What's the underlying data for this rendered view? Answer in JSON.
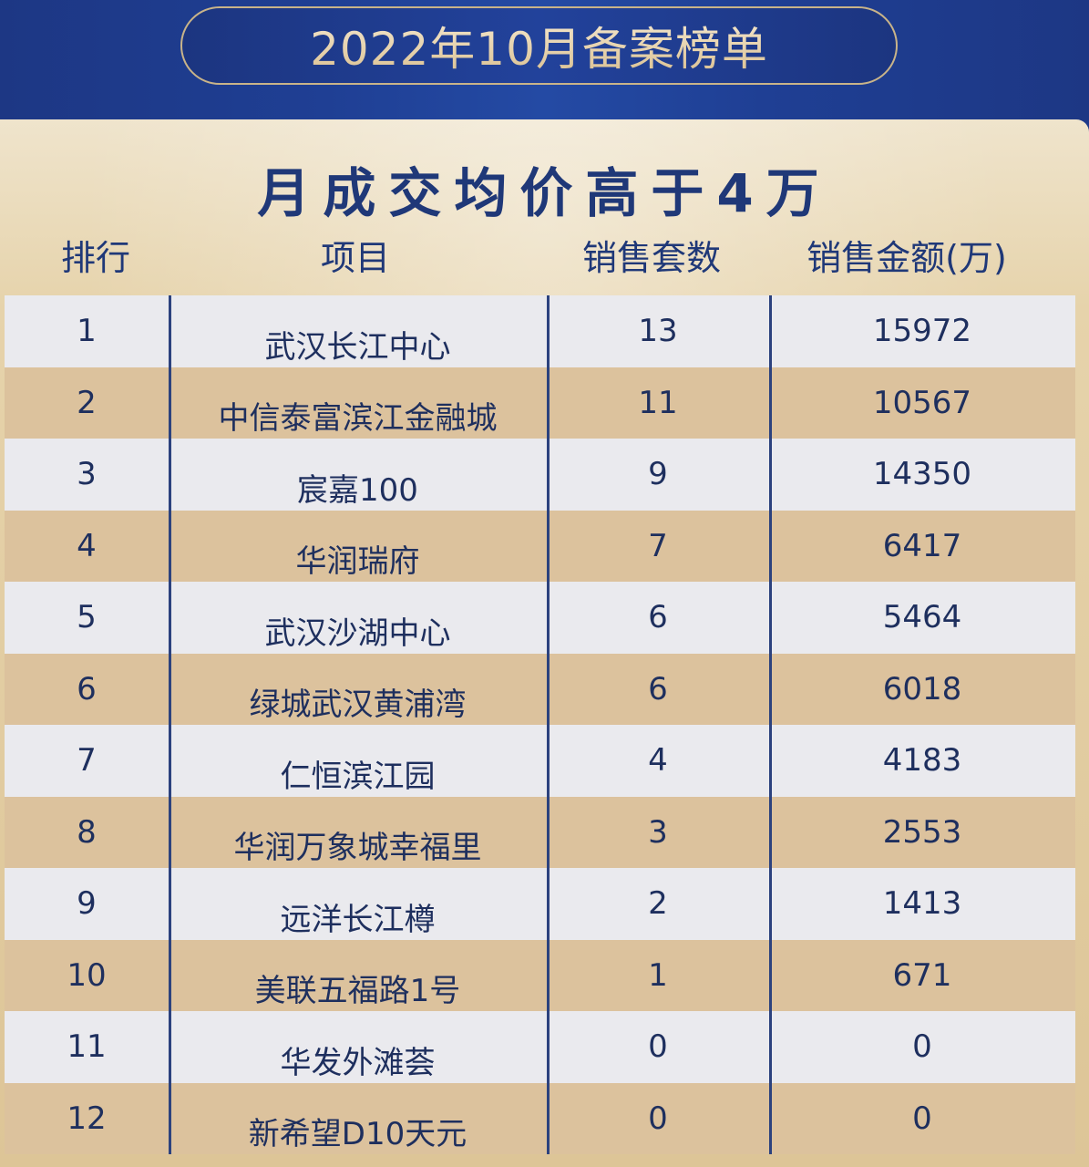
{
  "header": {
    "title": "2022年10月备案榜单"
  },
  "subtitle": "月成交均价高于4万",
  "columns": [
    "排行",
    "项目",
    "销售套数",
    "销售金额(万)"
  ],
  "rows": [
    {
      "rank": "1",
      "name": "武汉长江中心",
      "units": "13",
      "amount": "15972"
    },
    {
      "rank": "2",
      "name": "中信泰富滨江金融城",
      "units": "11",
      "amount": "10567"
    },
    {
      "rank": "3",
      "name": "宸嘉100",
      "units": "9",
      "amount": "14350"
    },
    {
      "rank": "4",
      "name": "华润瑞府",
      "units": "7",
      "amount": "6417"
    },
    {
      "rank": "5",
      "name": "武汉沙湖中心",
      "units": "6",
      "amount": "5464"
    },
    {
      "rank": "6",
      "name": "绿城武汉黄浦湾",
      "units": "6",
      "amount": "6018"
    },
    {
      "rank": "7",
      "name": "仁恒滨江园",
      "units": "4",
      "amount": "4183"
    },
    {
      "rank": "8",
      "name": "华润万象城幸福里",
      "units": "3",
      "amount": "2553"
    },
    {
      "rank": "9",
      "name": "远洋长江樽",
      "units": "2",
      "amount": "1413"
    },
    {
      "rank": "10",
      "name": "美联五福路1号",
      "units": "1",
      "amount": "671"
    },
    {
      "rank": "11",
      "name": "华发外滩荟",
      "units": "0",
      "amount": "0"
    },
    {
      "rank": "12",
      "name": "新希望D10天元",
      "units": "0",
      "amount": "0"
    }
  ],
  "colors": {
    "navy": "#1e3a8a",
    "gold": "#c9b489",
    "row_light": "#eaeaee",
    "row_tan": "#dcc29d"
  }
}
